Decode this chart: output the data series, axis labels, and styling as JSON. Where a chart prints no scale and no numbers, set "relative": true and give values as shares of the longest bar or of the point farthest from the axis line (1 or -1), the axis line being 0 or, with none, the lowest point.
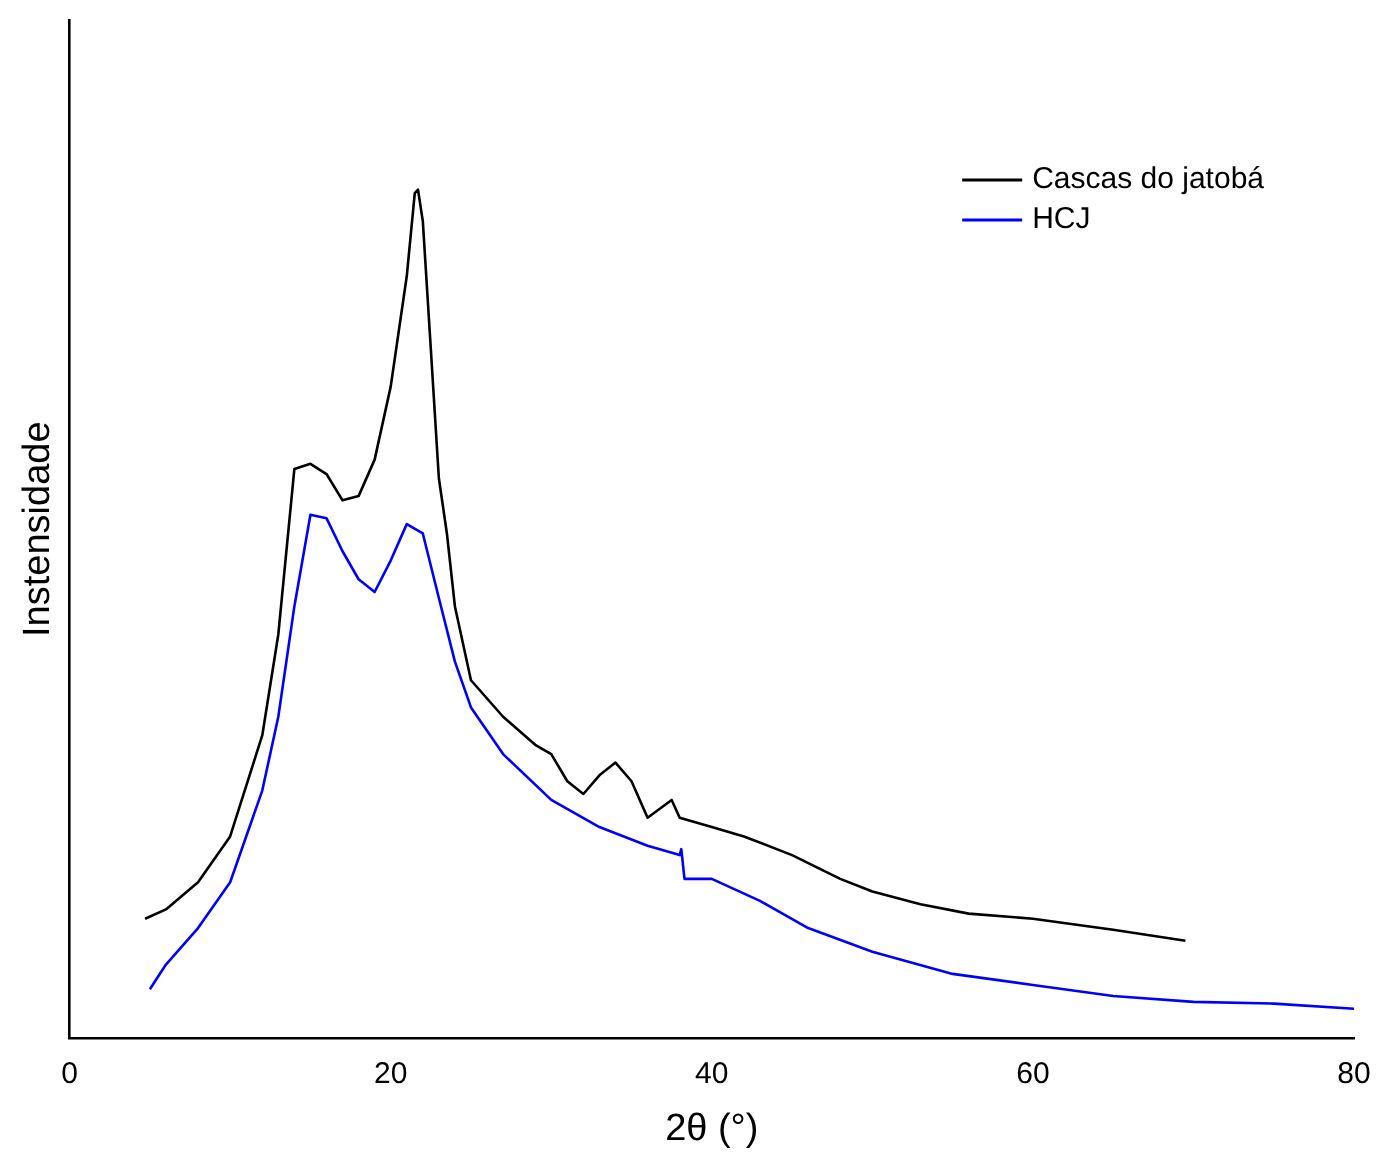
{
  "chart_data": {
    "type": "line",
    "xlabel": "2θ (°)",
    "ylabel": "Instensidade",
    "relative": true,
    "xlim": [
      0,
      80
    ],
    "xticks": [
      0,
      20,
      40,
      60,
      80
    ],
    "grid": false,
    "legend": "top right",
    "marker": "none",
    "line_style": "solid",
    "series": [
      {
        "name": "Cascas do jatobá",
        "color": "#000000",
        "x": [
          4.7,
          6,
          8,
          10,
          12,
          13,
          14,
          15,
          16,
          17,
          18,
          19,
          20,
          21,
          21.5,
          21.7,
          22,
          22.5,
          23,
          23.5,
          24,
          25,
          27,
          29,
          30,
          31,
          32,
          33,
          34,
          35,
          36,
          37.5,
          38,
          40,
          42,
          45,
          48,
          50,
          53,
          56,
          60,
          65,
          69.5
        ],
        "values": [
          0.141,
          0.152,
          0.184,
          0.238,
          0.357,
          0.476,
          0.671,
          0.677,
          0.665,
          0.634,
          0.639,
          0.682,
          0.768,
          0.898,
          0.996,
          1,
          0.963,
          0.812,
          0.66,
          0.595,
          0.509,
          0.422,
          0.379,
          0.346,
          0.335,
          0.303,
          0.288,
          0.31,
          0.325,
          0.303,
          0.26,
          0.281,
          0.26,
          0.249,
          0.238,
          0.216,
          0.188,
          0.173,
          0.158,
          0.147,
          0.141,
          0.128,
          0.115
        ]
      },
      {
        "name": "HCJ",
        "color": "#0000ff",
        "x": [
          5,
          6,
          8,
          10,
          12,
          13,
          14,
          15,
          16,
          17,
          18,
          19,
          20,
          21,
          22,
          23,
          24,
          25,
          27,
          30,
          33,
          36,
          38,
          38.1,
          38.3,
          40,
          43,
          46,
          50,
          55,
          60,
          65,
          70,
          75,
          80
        ],
        "values": [
          0.058,
          0.087,
          0.13,
          0.184,
          0.292,
          0.379,
          0.509,
          0.617,
          0.613,
          0.574,
          0.541,
          0.526,
          0.563,
          0.606,
          0.595,
          0.519,
          0.444,
          0.39,
          0.335,
          0.281,
          0.249,
          0.227,
          0.216,
          0.223,
          0.188,
          0.188,
          0.162,
          0.13,
          0.102,
          0.076,
          0.063,
          0.05,
          0.043,
          0.041,
          0.035
        ]
      }
    ]
  }
}
